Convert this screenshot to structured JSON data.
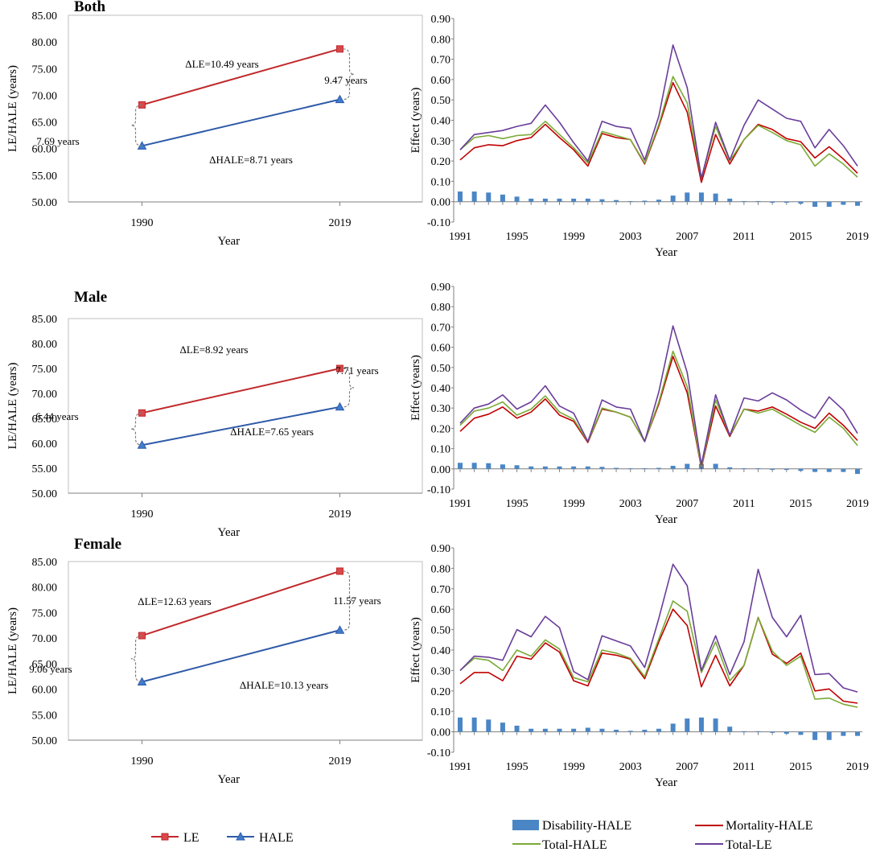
{
  "colors": {
    "le": "#c0292b",
    "le_marker": "#d9484a",
    "hale": "#2e5aa8",
    "hale_marker": "#3f7cd0",
    "disability": "#4a86c6",
    "mortality": "#c00000",
    "total_hale": "#7aaa36",
    "total_le": "#6a3d9a"
  },
  "legend_left": {
    "le": "LE",
    "hale": "HALE"
  },
  "legend_right": {
    "disability": "Disability-HALE",
    "mortality": "Mortality-HALE",
    "total_hale": "Total-HALE",
    "total_le": "Total-LE"
  },
  "chart_data": [
    {
      "type": "line",
      "title": "Both",
      "xlabel": "Year",
      "ylabel": "LE/HALE (years)",
      "ylim": [
        50,
        85
      ],
      "yticks": [
        "50.00",
        "55.00",
        "60.00",
        "65.00",
        "70.00",
        "75.00",
        "80.00",
        "85.00"
      ],
      "categories": [
        "1990",
        "2019"
      ],
      "series": [
        {
          "name": "LE",
          "values": [
            68.2,
            78.69
          ]
        },
        {
          "name": "HALE",
          "values": [
            60.51,
            69.22
          ]
        }
      ],
      "annotations": {
        "delta_le": "ΔLE=10.49 years",
        "delta_hale": "ΔHALE=8.71 years",
        "gap_1990": "7.69 years",
        "gap_2019": "9.47 years"
      }
    },
    {
      "type": "line",
      "title": "Male",
      "xlabel": "Year",
      "ylabel": "LE/HALE (years)",
      "ylim": [
        50,
        85
      ],
      "yticks": [
        "50.00",
        "55.00",
        "60.00",
        "65.00",
        "70.00",
        "75.00",
        "80.00",
        "85.00"
      ],
      "categories": [
        "1990",
        "2019"
      ],
      "series": [
        {
          "name": "LE",
          "values": [
            66.08,
            75.0
          ]
        },
        {
          "name": "HALE",
          "values": [
            59.64,
            67.29
          ]
        }
      ],
      "annotations": {
        "delta_le": "ΔLE=8.92 years",
        "delta_hale": "ΔHALE=7.65 years",
        "gap_1990": "6.44 years",
        "gap_2019": "7.71 years"
      }
    },
    {
      "type": "line",
      "title": "Female",
      "xlabel": "Year",
      "ylabel": "LE/HALE (years)",
      "ylim": [
        50,
        85
      ],
      "yticks": [
        "50.00",
        "55.00",
        "60.00",
        "65.00",
        "70.00",
        "75.00",
        "80.00",
        "85.00"
      ],
      "categories": [
        "1990",
        "2019"
      ],
      "series": [
        {
          "name": "LE",
          "values": [
            70.49,
            83.12
          ]
        },
        {
          "name": "HALE",
          "values": [
            61.43,
            71.56
          ]
        }
      ],
      "annotations": {
        "delta_le": "ΔLE=12.63 years",
        "delta_hale": "ΔHALE=10.13 years",
        "gap_1990": "9.06 years",
        "gap_2019": "11.57 years"
      }
    },
    {
      "type": "bar+line",
      "title": "",
      "xlabel": "Year",
      "ylabel": "Effect  (years)",
      "ylim": [
        -0.1,
        0.9
      ],
      "yticks": [
        "-0.10",
        "0.00",
        "0.10",
        "0.20",
        "0.30",
        "0.40",
        "0.50",
        "0.60",
        "0.70",
        "0.80",
        "0.90"
      ],
      "xtick_labels": [
        "1991",
        "1995",
        "1999",
        "2003",
        "2007",
        "2011",
        "2015",
        "2019"
      ],
      "x": [
        1991,
        1992,
        1993,
        1994,
        1995,
        1996,
        1997,
        1998,
        1999,
        2000,
        2001,
        2002,
        2003,
        2004,
        2005,
        2006,
        2007,
        2008,
        2009,
        2010,
        2011,
        2012,
        2013,
        2014,
        2015,
        2016,
        2017,
        2018,
        2019
      ],
      "series": [
        {
          "name": "Disability-HALE",
          "kind": "bar",
          "values": [
            0.05,
            0.05,
            0.045,
            0.035,
            0.025,
            0.015,
            0.015,
            0.015,
            0.015,
            0.015,
            0.012,
            0.008,
            0.003,
            0.005,
            0.01,
            0.03,
            0.045,
            0.045,
            0.04,
            0.015,
            0.003,
            0.003,
            -0.005,
            -0.005,
            -0.01,
            -0.025,
            -0.025,
            -0.015,
            -0.02
          ]
        },
        {
          "name": "Mortality-HALE",
          "kind": "line",
          "values": [
            0.205,
            0.265,
            0.28,
            0.275,
            0.3,
            0.315,
            0.38,
            0.315,
            0.255,
            0.175,
            0.335,
            0.315,
            0.305,
            0.185,
            0.37,
            0.585,
            0.44,
            0.095,
            0.33,
            0.185,
            0.305,
            0.38,
            0.355,
            0.31,
            0.295,
            0.215,
            0.27,
            0.21,
            0.14
          ]
        },
        {
          "name": "Total-HALE",
          "kind": "line",
          "values": [
            0.255,
            0.315,
            0.325,
            0.31,
            0.325,
            0.33,
            0.395,
            0.33,
            0.265,
            0.19,
            0.345,
            0.325,
            0.305,
            0.19,
            0.38,
            0.615,
            0.485,
            0.115,
            0.37,
            0.2,
            0.305,
            0.375,
            0.34,
            0.3,
            0.28,
            0.175,
            0.235,
            0.185,
            0.12
          ]
        },
        {
          "name": "Total-LE",
          "kind": "line",
          "values": [
            0.255,
            0.33,
            0.34,
            0.35,
            0.37,
            0.385,
            0.475,
            0.39,
            0.29,
            0.2,
            0.395,
            0.37,
            0.36,
            0.205,
            0.42,
            0.77,
            0.56,
            0.115,
            0.39,
            0.205,
            0.375,
            0.5,
            0.455,
            0.41,
            0.395,
            0.265,
            0.355,
            0.275,
            0.175
          ]
        }
      ]
    },
    {
      "type": "bar+line",
      "title": "",
      "xlabel": "Year",
      "ylabel": "Effect  (years)",
      "ylim": [
        -0.1,
        0.9
      ],
      "yticks": [
        "-0.10",
        "0.00",
        "0.10",
        "0.20",
        "0.30",
        "0.40",
        "0.50",
        "0.60",
        "0.70",
        "0.80",
        "0.90"
      ],
      "xtick_labels": [
        "1991",
        "1995",
        "1999",
        "2003",
        "2007",
        "2011",
        "2015",
        "2019"
      ],
      "x": [
        1991,
        1992,
        1993,
        1994,
        1995,
        1996,
        1997,
        1998,
        1999,
        2000,
        2001,
        2002,
        2003,
        2004,
        2005,
        2006,
        2007,
        2008,
        2009,
        2010,
        2011,
        2012,
        2013,
        2014,
        2015,
        2016,
        2017,
        2018,
        2019
      ],
      "series": [
        {
          "name": "Disability-HALE",
          "kind": "bar",
          "values": [
            0.03,
            0.03,
            0.028,
            0.022,
            0.018,
            0.012,
            0.012,
            0.012,
            0.012,
            0.012,
            0.01,
            0.005,
            0.003,
            0.003,
            0.005,
            0.015,
            0.025,
            0.025,
            0.025,
            0.008,
            0.003,
            0.003,
            -0.005,
            -0.005,
            -0.01,
            -0.015,
            -0.015,
            -0.015,
            -0.025
          ]
        },
        {
          "name": "Mortality-HALE",
          "kind": "line",
          "values": [
            0.185,
            0.25,
            0.27,
            0.305,
            0.25,
            0.28,
            0.345,
            0.265,
            0.235,
            0.13,
            0.295,
            0.28,
            0.255,
            0.135,
            0.32,
            0.555,
            0.375,
            0.005,
            0.31,
            0.16,
            0.295,
            0.285,
            0.305,
            0.27,
            0.23,
            0.2,
            0.275,
            0.215,
            0.14
          ]
        },
        {
          "name": "Total-HALE",
          "kind": "line",
          "values": [
            0.215,
            0.285,
            0.3,
            0.33,
            0.265,
            0.295,
            0.36,
            0.28,
            0.245,
            0.135,
            0.3,
            0.28,
            0.255,
            0.135,
            0.33,
            0.58,
            0.405,
            0.01,
            0.34,
            0.165,
            0.295,
            0.275,
            0.295,
            0.255,
            0.215,
            0.18,
            0.255,
            0.2,
            0.115
          ]
        },
        {
          "name": "Total-LE",
          "kind": "line",
          "values": [
            0.225,
            0.3,
            0.32,
            0.365,
            0.295,
            0.33,
            0.41,
            0.31,
            0.275,
            0.135,
            0.34,
            0.305,
            0.295,
            0.135,
            0.38,
            0.705,
            0.475,
            0.02,
            0.365,
            0.165,
            0.35,
            0.335,
            0.375,
            0.34,
            0.29,
            0.25,
            0.355,
            0.29,
            0.175
          ]
        }
      ]
    },
    {
      "type": "bar+line",
      "title": "",
      "xlabel": "Year",
      "ylabel": "Effect  (years)",
      "ylim": [
        -0.1,
        0.9
      ],
      "yticks": [
        "-0.10",
        "0.00",
        "0.10",
        "0.20",
        "0.30",
        "0.40",
        "0.50",
        "0.60",
        "0.70",
        "0.80",
        "0.90"
      ],
      "xtick_labels": [
        "1991",
        "1995",
        "1999",
        "2003",
        "2007",
        "2011",
        "2015",
        "2019"
      ],
      "x": [
        1991,
        1992,
        1993,
        1994,
        1995,
        1996,
        1997,
        1998,
        1999,
        2000,
        2001,
        2002,
        2003,
        2004,
        2005,
        2006,
        2007,
        2008,
        2009,
        2010,
        2011,
        2012,
        2013,
        2014,
        2015,
        2016,
        2017,
        2018,
        2019
      ],
      "series": [
        {
          "name": "Disability-HALE",
          "kind": "bar",
          "values": [
            0.07,
            0.07,
            0.06,
            0.045,
            0.03,
            0.015,
            0.015,
            0.015,
            0.015,
            0.02,
            0.015,
            0.01,
            0.005,
            0.01,
            0.015,
            0.04,
            0.065,
            0.07,
            0.065,
            0.025,
            0.003,
            0.003,
            -0.005,
            -0.01,
            -0.015,
            -0.04,
            -0.04,
            -0.02,
            -0.02
          ]
        },
        {
          "name": "Mortality-HALE",
          "kind": "line",
          "values": [
            0.235,
            0.29,
            0.29,
            0.25,
            0.37,
            0.355,
            0.435,
            0.39,
            0.25,
            0.225,
            0.385,
            0.375,
            0.355,
            0.26,
            0.44,
            0.6,
            0.52,
            0.22,
            0.375,
            0.225,
            0.325,
            0.56,
            0.38,
            0.335,
            0.385,
            0.2,
            0.21,
            0.15,
            0.14
          ]
        },
        {
          "name": "Total-HALE",
          "kind": "line",
          "values": [
            0.3,
            0.36,
            0.35,
            0.3,
            0.4,
            0.37,
            0.45,
            0.405,
            0.265,
            0.245,
            0.4,
            0.385,
            0.36,
            0.27,
            0.455,
            0.64,
            0.59,
            0.29,
            0.44,
            0.25,
            0.325,
            0.56,
            0.395,
            0.325,
            0.37,
            0.16,
            0.165,
            0.135,
            0.12
          ]
        },
        {
          "name": "Total-LE",
          "kind": "line",
          "values": [
            0.3,
            0.37,
            0.365,
            0.35,
            0.5,
            0.465,
            0.565,
            0.51,
            0.295,
            0.255,
            0.47,
            0.445,
            0.42,
            0.315,
            0.555,
            0.82,
            0.715,
            0.3,
            0.47,
            0.28,
            0.44,
            0.795,
            0.56,
            0.465,
            0.57,
            0.28,
            0.285,
            0.215,
            0.195
          ]
        }
      ]
    }
  ]
}
